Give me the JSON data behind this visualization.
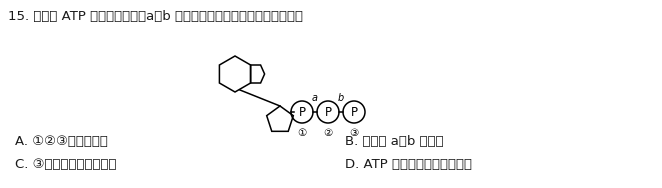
{
  "title_text": "15. 如图为 ATP 的结构示意图，a、b 代表某种化学键。下列叙述错误的是",
  "answer_A": "A. ①②③代表磷元素",
  "answer_B": "B. 化学键 a、b 不稳定",
  "answer_C": "C. ③具有较高的转移势能",
  "answer_D": "D. ATP 是一种高能磷酸化合物",
  "font_color": "#1a1a1a",
  "bg_color": "#ffffff",
  "title_fontsize": 9.5,
  "answer_fontsize": 9.5
}
